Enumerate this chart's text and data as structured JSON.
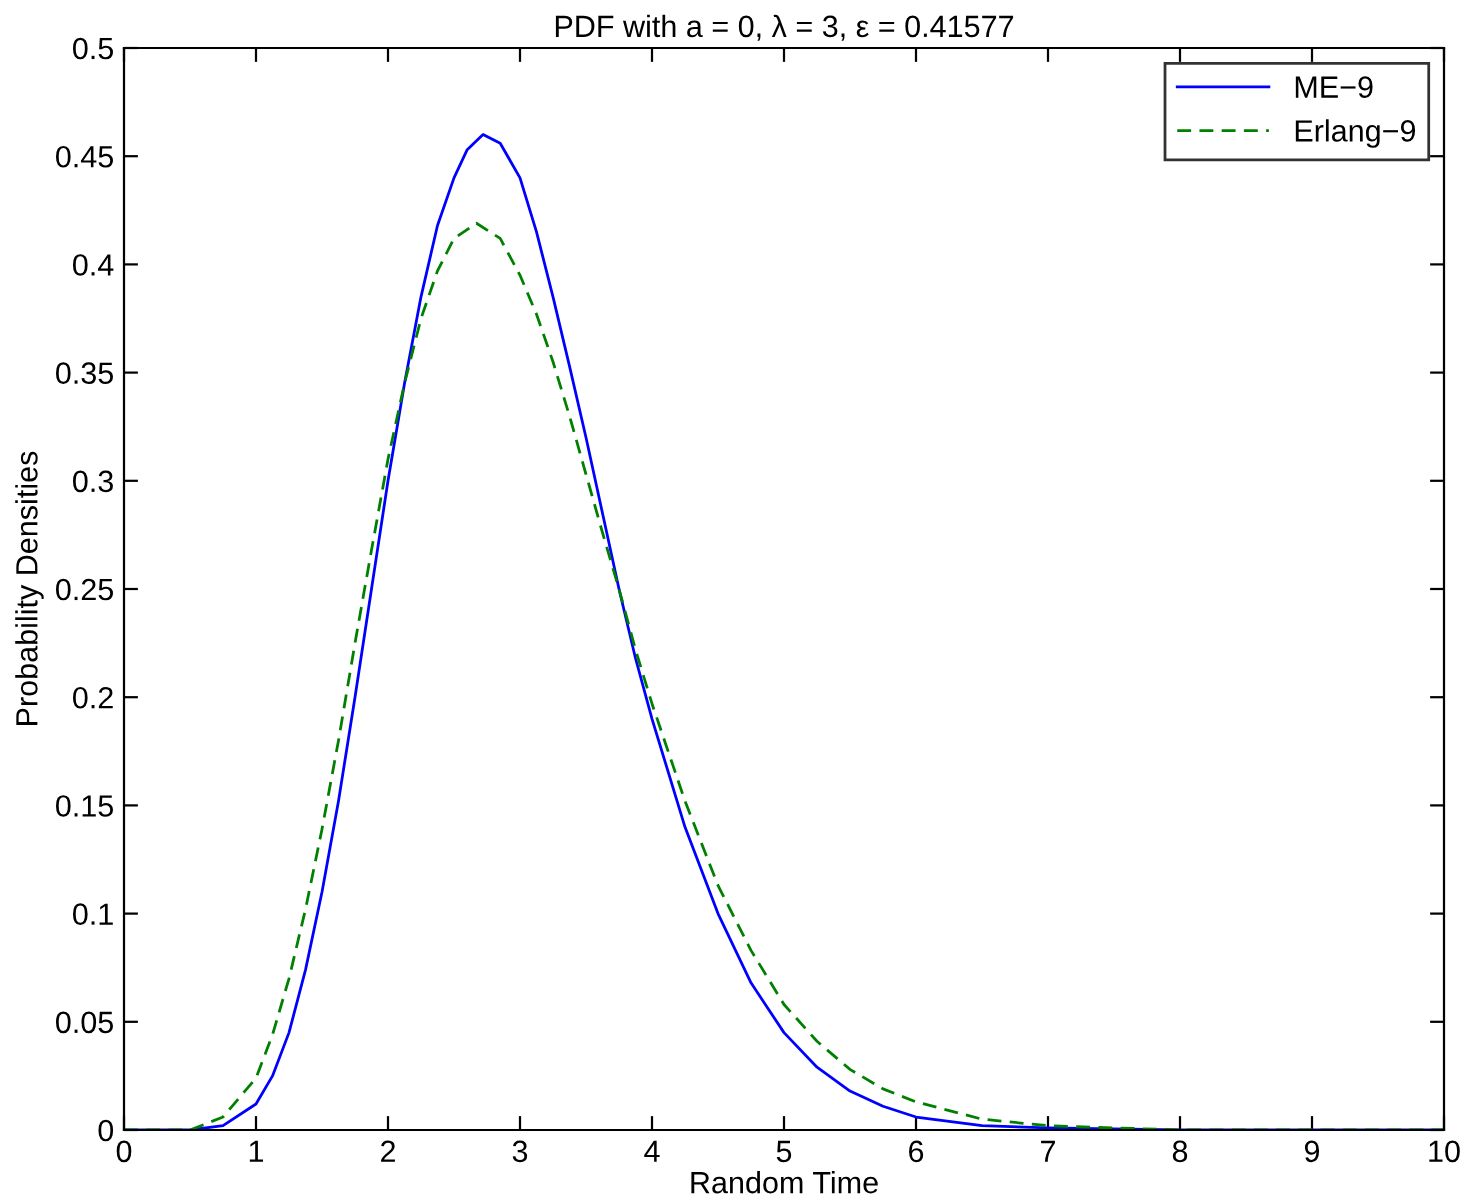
{
  "chart_data": {
    "type": "line",
    "title": "PDF with a = 0, λ = 3, ε = 0.41577",
    "xlabel": "Random Time",
    "ylabel": "Probability Densities",
    "xlim": [
      0,
      10
    ],
    "ylim": [
      0,
      0.5
    ],
    "xticks": [
      0,
      1,
      2,
      3,
      4,
      5,
      6,
      7,
      8,
      9,
      10
    ],
    "yticks": [
      0,
      0.05,
      0.1,
      0.15,
      0.2,
      0.25,
      0.3,
      0.35,
      0.4,
      0.45,
      0.5
    ],
    "grid": false,
    "legend": "top right",
    "marker": "none",
    "series": [
      {
        "name": "ME−9",
        "color": "#0000ff",
        "line_style": "solid",
        "x": [
          0,
          0.5,
          0.75,
          1,
          1.125,
          1.25,
          1.375,
          1.5,
          1.625,
          1.75,
          1.875,
          2,
          2.125,
          2.25,
          2.375,
          2.5,
          2.6,
          2.72,
          2.85,
          3,
          3.125,
          3.25,
          3.375,
          3.5,
          3.625,
          3.75,
          3.875,
          4,
          4.25,
          4.5,
          4.75,
          5,
          5.25,
          5.5,
          5.75,
          6,
          6.5,
          7,
          8,
          10
        ],
        "values": [
          0,
          0,
          0.002,
          0.012,
          0.025,
          0.045,
          0.074,
          0.11,
          0.152,
          0.2,
          0.25,
          0.3,
          0.345,
          0.385,
          0.418,
          0.44,
          0.453,
          0.46,
          0.456,
          0.44,
          0.415,
          0.385,
          0.353,
          0.32,
          0.285,
          0.25,
          0.218,
          0.19,
          0.14,
          0.1,
          0.068,
          0.045,
          0.029,
          0.018,
          0.011,
          0.006,
          0.002,
          0.001,
          0,
          0
        ]
      },
      {
        "name": "Erlang−9",
        "color": "#008000",
        "line_style": "dashed",
        "x": [
          0,
          0.5,
          0.75,
          1,
          1.125,
          1.25,
          1.375,
          1.5,
          1.625,
          1.75,
          1.875,
          2,
          2.125,
          2.25,
          2.375,
          2.5,
          2.67,
          2.85,
          3,
          3.125,
          3.25,
          3.375,
          3.5,
          3.625,
          3.75,
          3.875,
          4,
          4.25,
          4.5,
          4.75,
          5,
          5.25,
          5.5,
          5.75,
          6,
          6.5,
          7,
          8,
          10
        ],
        "values": [
          0,
          0,
          0.006,
          0.024,
          0.044,
          0.07,
          0.102,
          0.139,
          0.18,
          0.225,
          0.268,
          0.31,
          0.345,
          0.375,
          0.397,
          0.412,
          0.419,
          0.412,
          0.395,
          0.377,
          0.355,
          0.33,
          0.303,
          0.276,
          0.25,
          0.222,
          0.197,
          0.152,
          0.113,
          0.083,
          0.058,
          0.041,
          0.028,
          0.019,
          0.013,
          0.005,
          0.002,
          0,
          0
        ]
      }
    ]
  }
}
